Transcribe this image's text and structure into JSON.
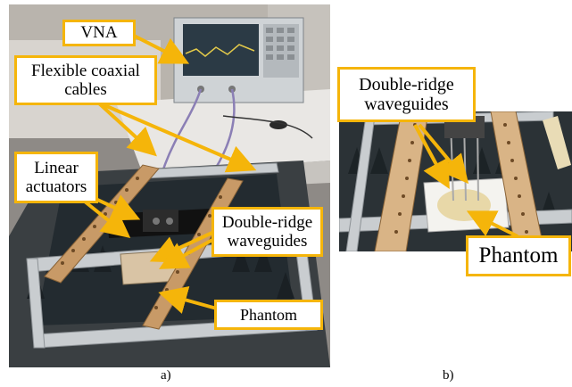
{
  "panel_a": {
    "labels": {
      "vna": "VNA",
      "cables_line1": "Flexible coaxial",
      "cables_line2": "cables",
      "actuators_line1": "Linear",
      "actuators_line2": "actuators",
      "waveguides_line1": "Double-ridge",
      "waveguides_line2": "waveguides",
      "phantom": "Phantom"
    },
    "caption": "a)"
  },
  "panel_b": {
    "labels": {
      "waveguides_line1": "Double-ridge",
      "waveguides_line2": "waveguides",
      "phantom": "Phantom"
    },
    "caption": "b)"
  },
  "colors": {
    "label_border": "#f5b50a",
    "arrow": "#f5b50a",
    "wood": "#c89a67",
    "absorber": "#1f2a30",
    "frame": "#c9cdd0"
  }
}
